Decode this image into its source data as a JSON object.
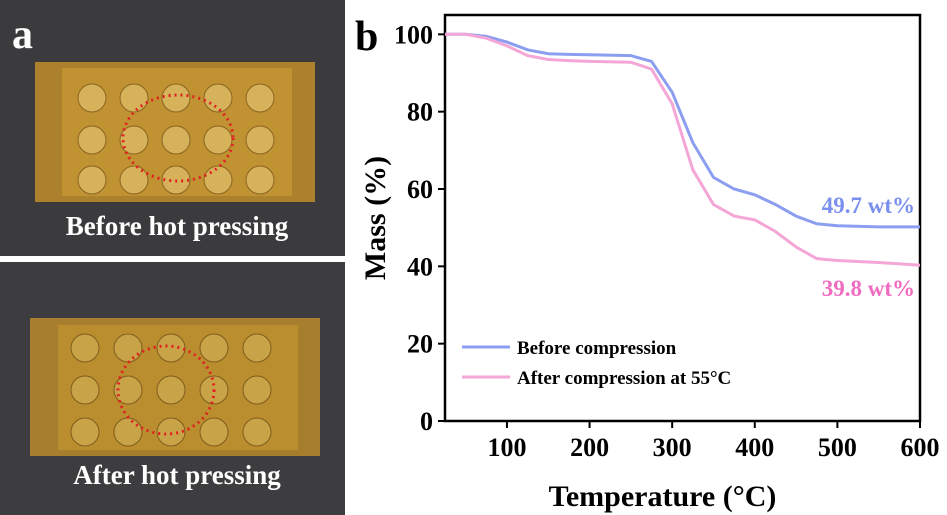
{
  "panel_a": {
    "label": "a",
    "photos": [
      {
        "caption": "Before hot pressing"
      },
      {
        "caption": "After hot pressing"
      }
    ]
  },
  "chart_data": {
    "type": "line",
    "panel_label": "b",
    "x_label": "Temperature (°C)",
    "y_label": "Mass (%)",
    "x": [
      25,
      50,
      75,
      100,
      125,
      150,
      175,
      200,
      250,
      275,
      300,
      325,
      350,
      375,
      400,
      425,
      450,
      475,
      500,
      550,
      600
    ],
    "series": [
      {
        "name": "Before compression",
        "color": "#8c9ef0",
        "values": [
          100,
          100,
          99.5,
          98,
          96,
          95,
          94.8,
          94.7,
          94.5,
          93,
          85,
          72,
          63,
          60,
          58.5,
          56,
          53,
          51,
          50.5,
          50.2,
          50.2
        ]
      },
      {
        "name": "After compression at 55°C",
        "color": "#f4a6d6",
        "values": [
          100,
          100,
          99,
          97,
          94.5,
          93.5,
          93.2,
          93,
          92.8,
          91,
          82,
          65,
          56,
          53,
          52,
          49,
          45,
          42,
          41.5,
          41,
          40.3
        ]
      }
    ],
    "annotations": [
      {
        "text": "49.7 wt%",
        "color": "#7b8ff0"
      },
      {
        "text": "39.8 wt%",
        "color": "#f06cc0"
      }
    ],
    "xlim": [
      25,
      600
    ],
    "ylim": [
      0,
      105
    ],
    "xticks": [
      100,
      200,
      300,
      400,
      500,
      600
    ],
    "yticks": [
      0,
      20,
      40,
      60,
      80,
      100
    ]
  }
}
